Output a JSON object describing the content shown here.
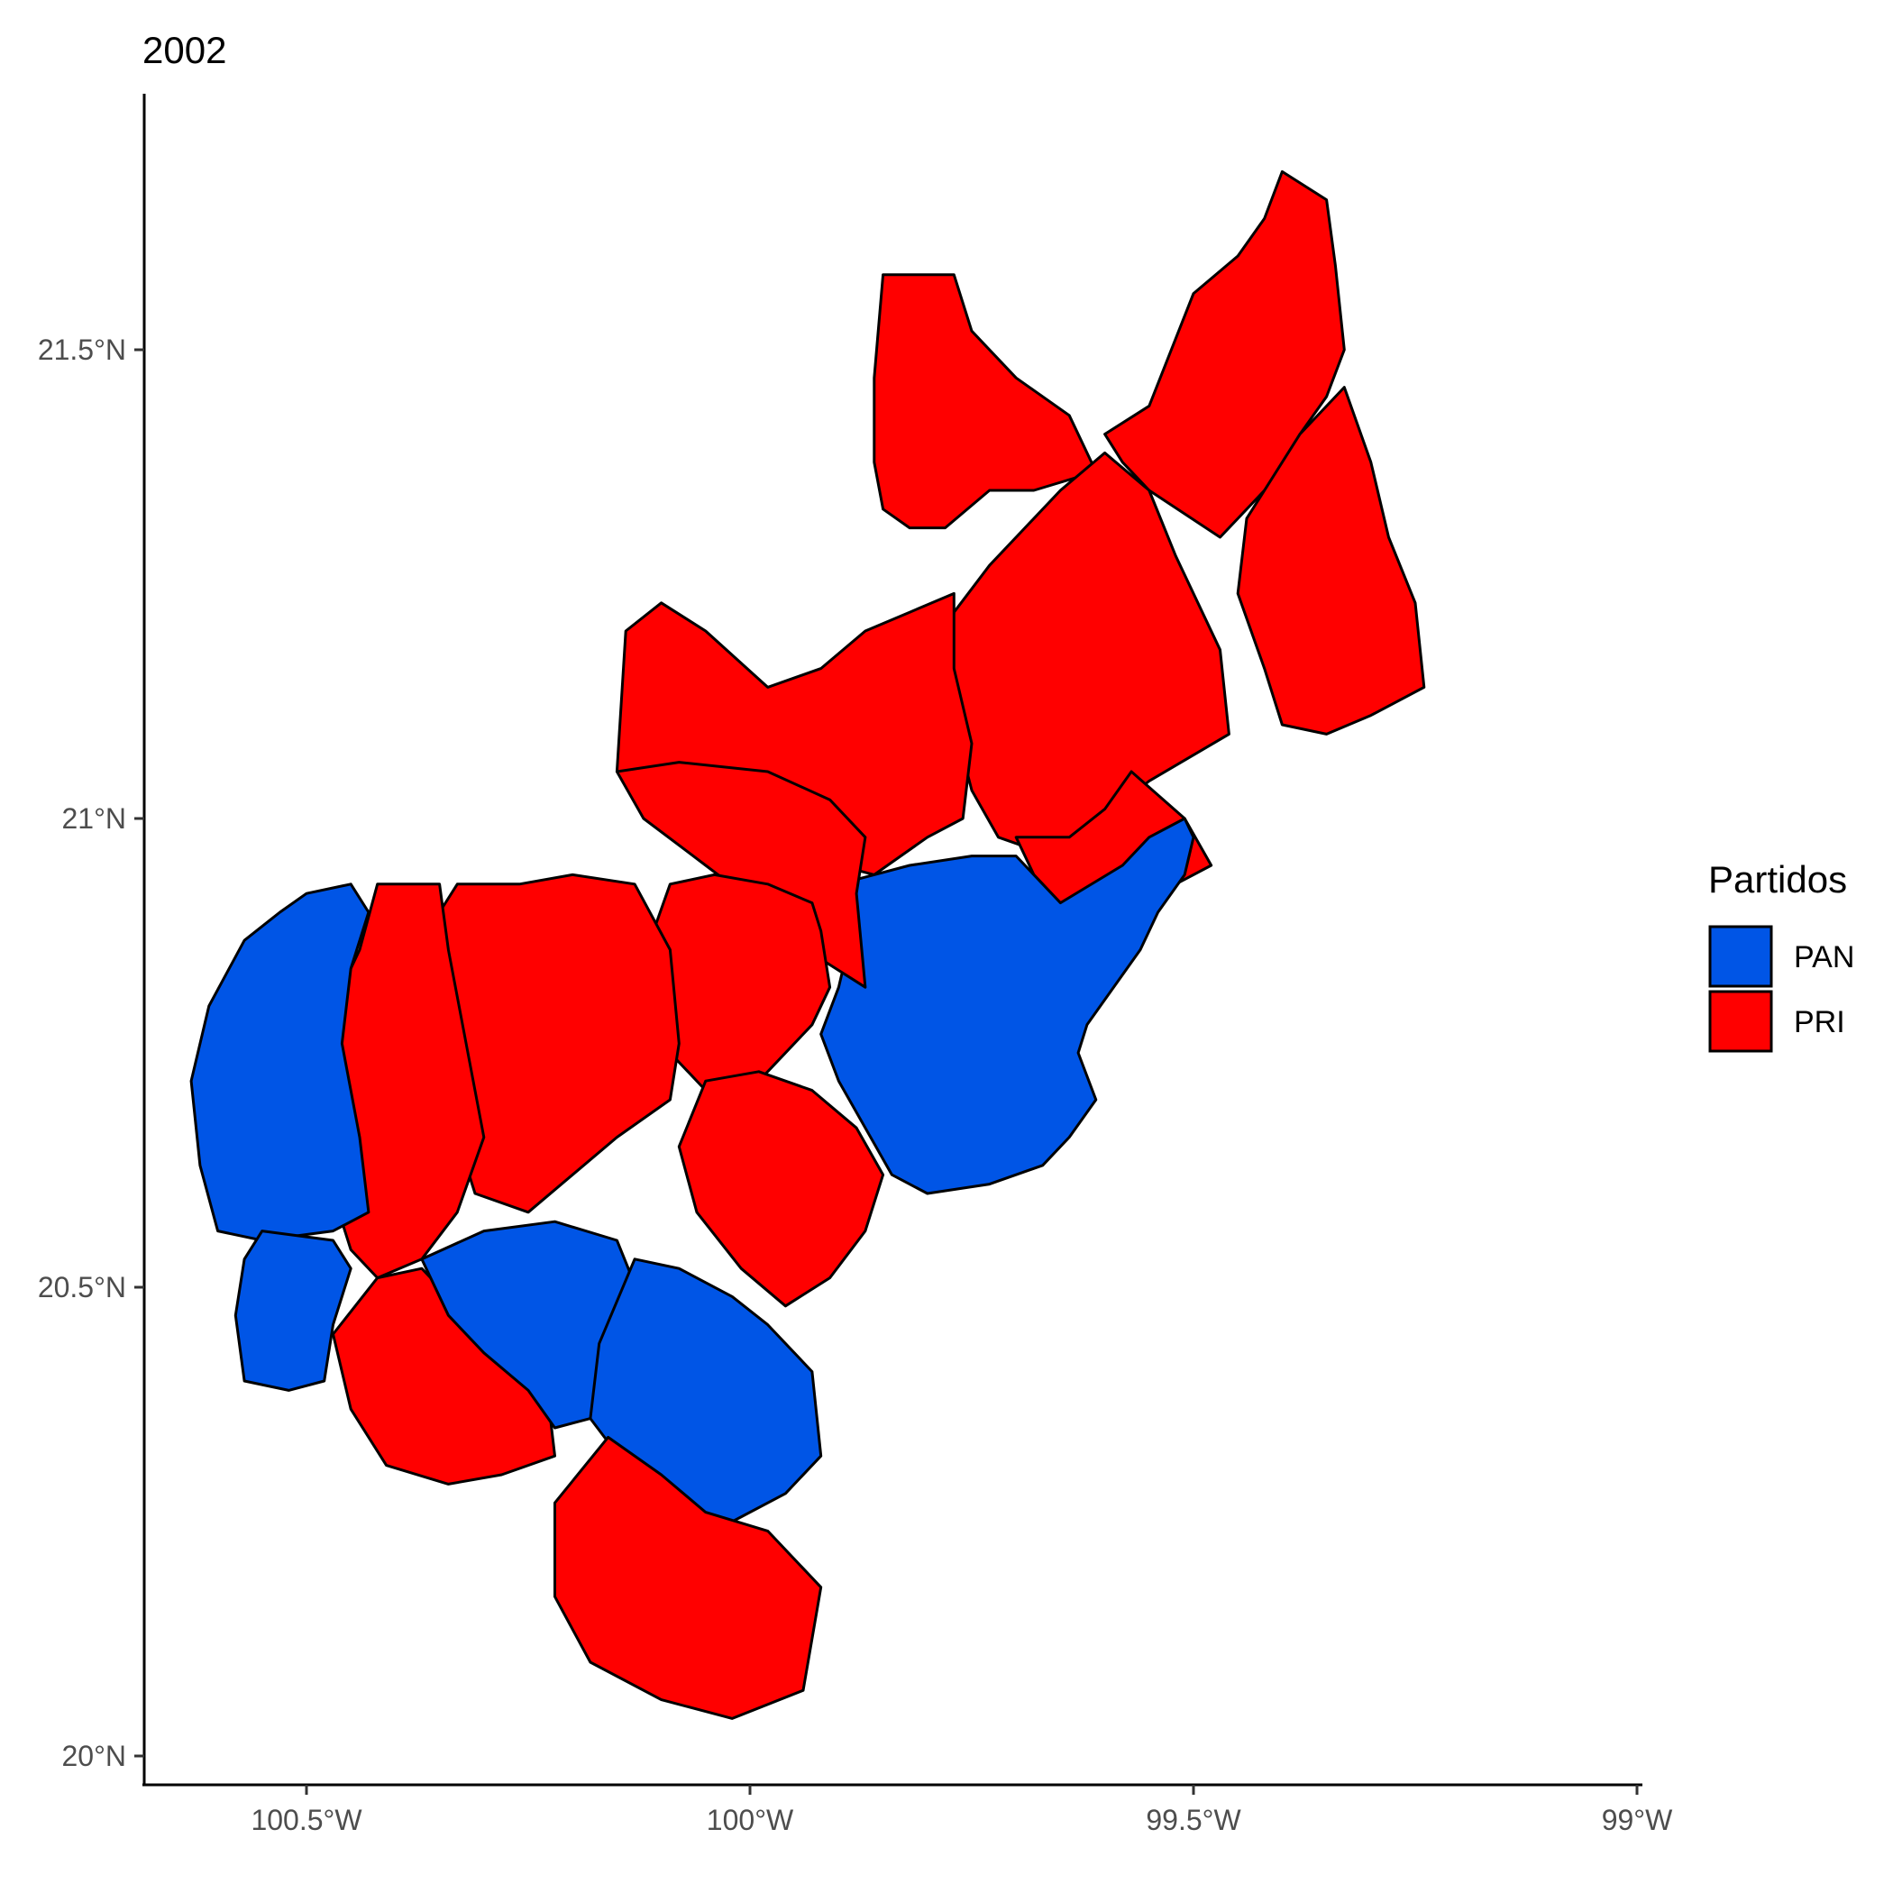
{
  "chart_data": {
    "type": "choropleth",
    "title": "2002",
    "x_axis": {
      "ticks": [
        {
          "value": -100.5,
          "label": "100.5°W"
        },
        {
          "value": -100.0,
          "label": "100°W"
        },
        {
          "value": -99.5,
          "label": "99.5°W"
        },
        {
          "value": -99.0,
          "label": "99°W"
        }
      ],
      "range": [
        -100.68,
        -99.0
      ]
    },
    "y_axis": {
      "ticks": [
        {
          "value": 20.0,
          "label": "20°N"
        },
        {
          "value": 20.5,
          "label": "20.5°N"
        },
        {
          "value": 21.0,
          "label": "21°N"
        },
        {
          "value": 21.5,
          "label": "21.5°N"
        }
      ],
      "range": [
        19.95,
        21.76
      ]
    },
    "legend": {
      "title": "Partidos",
      "placement": "right",
      "entries": [
        {
          "label": "PAN",
          "color": "#0055e6"
        },
        {
          "label": "PRI",
          "color": "#ff0000"
        }
      ]
    },
    "regions": [
      {
        "party": "PRI",
        "coords": [
          [
            -99.85,
            21.58
          ],
          [
            -99.77,
            21.58
          ],
          [
            -99.75,
            21.52
          ],
          [
            -99.7,
            21.47
          ],
          [
            -99.64,
            21.43
          ],
          [
            -99.61,
            21.37
          ],
          [
            -99.68,
            21.35
          ],
          [
            -99.73,
            21.35
          ],
          [
            -99.78,
            21.31
          ],
          [
            -99.82,
            21.31
          ],
          [
            -99.85,
            21.33
          ],
          [
            -99.86,
            21.38
          ],
          [
            -99.86,
            21.47
          ]
        ]
      },
      {
        "party": "PRI",
        "coords": [
          [
            -99.6,
            21.41
          ],
          [
            -99.55,
            21.44
          ],
          [
            -99.5,
            21.56
          ],
          [
            -99.45,
            21.6
          ],
          [
            -99.42,
            21.64
          ],
          [
            -99.4,
            21.69
          ],
          [
            -99.35,
            21.66
          ],
          [
            -99.34,
            21.59
          ],
          [
            -99.33,
            21.5
          ],
          [
            -99.35,
            21.45
          ],
          [
            -99.38,
            21.41
          ],
          [
            -99.41,
            21.36
          ],
          [
            -99.47,
            21.3
          ],
          [
            -99.55,
            21.35
          ],
          [
            -99.58,
            21.38
          ]
        ]
      },
      {
        "party": "PRI",
        "coords": [
          [
            -99.38,
            21.41
          ],
          [
            -99.33,
            21.46
          ],
          [
            -99.3,
            21.38
          ],
          [
            -99.28,
            21.3
          ],
          [
            -99.25,
            21.23
          ],
          [
            -99.24,
            21.14
          ],
          [
            -99.3,
            21.11
          ],
          [
            -99.35,
            21.09
          ],
          [
            -99.4,
            21.1
          ],
          [
            -99.42,
            21.16
          ],
          [
            -99.45,
            21.24
          ],
          [
            -99.44,
            21.32
          ]
        ]
      },
      {
        "party": "PRI",
        "coords": [
          [
            -99.65,
            21.35
          ],
          [
            -99.6,
            21.39
          ],
          [
            -99.55,
            21.35
          ],
          [
            -99.52,
            21.28
          ],
          [
            -99.47,
            21.18
          ],
          [
            -99.46,
            21.09
          ],
          [
            -99.55,
            21.04
          ],
          [
            -99.6,
            21.0
          ],
          [
            -99.66,
            20.96
          ],
          [
            -99.72,
            20.98
          ],
          [
            -99.75,
            21.03
          ],
          [
            -99.78,
            21.14
          ],
          [
            -99.77,
            21.22
          ],
          [
            -99.73,
            21.27
          ],
          [
            -99.69,
            21.31
          ]
        ]
      },
      {
        "party": "PRI",
        "coords": [
          [
            -99.57,
            21.05
          ],
          [
            -99.51,
            21.0
          ],
          [
            -99.48,
            20.95
          ],
          [
            -99.52,
            20.93
          ],
          [
            -99.58,
            20.91
          ],
          [
            -99.64,
            20.9
          ],
          [
            -99.68,
            20.94
          ],
          [
            -99.7,
            20.98
          ],
          [
            -99.64,
            20.98
          ],
          [
            -99.6,
            21.01
          ]
        ]
      },
      {
        "party": "PRI",
        "coords": [
          [
            -99.77,
            21.24
          ],
          [
            -99.82,
            21.22
          ],
          [
            -99.87,
            21.2
          ],
          [
            -99.92,
            21.16
          ],
          [
            -99.98,
            21.14
          ],
          [
            -100.05,
            21.2
          ],
          [
            -100.1,
            21.23
          ],
          [
            -100.14,
            21.2
          ],
          [
            -100.15,
            21.05
          ],
          [
            -100.1,
            21.04
          ],
          [
            -100.03,
            21.01
          ],
          [
            -99.94,
            20.96
          ],
          [
            -99.86,
            20.94
          ],
          [
            -99.8,
            20.98
          ],
          [
            -99.76,
            21.0
          ],
          [
            -99.75,
            21.08
          ],
          [
            -99.77,
            21.16
          ]
        ]
      },
      {
        "party": "PAN",
        "coords": [
          [
            -99.51,
            21.0
          ],
          [
            -99.55,
            20.98
          ],
          [
            -99.58,
            20.95
          ],
          [
            -99.65,
            20.91
          ],
          [
            -99.7,
            20.96
          ],
          [
            -99.75,
            20.96
          ],
          [
            -99.82,
            20.95
          ],
          [
            -99.86,
            20.94
          ],
          [
            -99.94,
            20.92
          ],
          [
            -99.89,
            20.86
          ],
          [
            -99.9,
            20.82
          ],
          [
            -99.92,
            20.77
          ],
          [
            -99.9,
            20.72
          ],
          [
            -99.87,
            20.67
          ],
          [
            -99.84,
            20.62
          ],
          [
            -99.8,
            20.6
          ],
          [
            -99.73,
            20.61
          ],
          [
            -99.67,
            20.63
          ],
          [
            -99.64,
            20.66
          ],
          [
            -99.61,
            20.7
          ],
          [
            -99.63,
            20.75
          ],
          [
            -99.62,
            20.78
          ],
          [
            -99.59,
            20.82
          ],
          [
            -99.56,
            20.86
          ],
          [
            -99.54,
            20.9
          ],
          [
            -99.51,
            20.94
          ],
          [
            -99.5,
            20.98
          ]
        ]
      },
      {
        "party": "PRI",
        "coords": [
          [
            -100.15,
            21.05
          ],
          [
            -100.12,
            21.0
          ],
          [
            -100.05,
            20.95
          ],
          [
            -99.98,
            20.9
          ],
          [
            -99.92,
            20.85
          ],
          [
            -99.87,
            20.82
          ],
          [
            -99.88,
            20.92
          ],
          [
            -99.87,
            20.98
          ],
          [
            -99.91,
            21.02
          ],
          [
            -99.98,
            21.05
          ],
          [
            -100.08,
            21.06
          ]
        ]
      },
      {
        "party": "PRI",
        "coords": [
          [
            -100.09,
            20.93
          ],
          [
            -100.04,
            20.94
          ],
          [
            -99.98,
            20.93
          ],
          [
            -99.93,
            20.91
          ],
          [
            -99.92,
            20.88
          ],
          [
            -99.91,
            20.82
          ],
          [
            -99.93,
            20.78
          ],
          [
            -99.99,
            20.72
          ],
          [
            -100.05,
            20.71
          ],
          [
            -100.1,
            20.76
          ],
          [
            -100.12,
            20.85
          ]
        ]
      },
      {
        "party": "PRI",
        "coords": [
          [
            -100.33,
            20.93
          ],
          [
            -100.26,
            20.93
          ],
          [
            -100.2,
            20.94
          ],
          [
            -100.13,
            20.93
          ],
          [
            -100.09,
            20.86
          ],
          [
            -100.08,
            20.76
          ],
          [
            -100.09,
            20.7
          ],
          [
            -100.15,
            20.66
          ],
          [
            -100.2,
            20.62
          ],
          [
            -100.25,
            20.58
          ],
          [
            -100.31,
            20.6
          ],
          [
            -100.33,
            20.66
          ],
          [
            -100.34,
            20.75
          ],
          [
            -100.35,
            20.85
          ],
          [
            -100.35,
            20.9
          ]
        ]
      },
      {
        "party": "PRI",
        "coords": [
          [
            -100.42,
            20.93
          ],
          [
            -100.35,
            20.93
          ],
          [
            -100.34,
            20.86
          ],
          [
            -100.32,
            20.76
          ],
          [
            -100.3,
            20.66
          ],
          [
            -100.33,
            20.58
          ],
          [
            -100.37,
            20.53
          ],
          [
            -100.42,
            20.51
          ],
          [
            -100.45,
            20.54
          ],
          [
            -100.47,
            20.6
          ],
          [
            -100.48,
            20.7
          ],
          [
            -100.48,
            20.78
          ],
          [
            -100.44,
            20.86
          ]
        ]
      },
      {
        "party": "PAN",
        "coords": [
          [
            -100.5,
            20.92
          ],
          [
            -100.45,
            20.93
          ],
          [
            -100.43,
            20.9
          ],
          [
            -100.45,
            20.84
          ],
          [
            -100.46,
            20.76
          ],
          [
            -100.44,
            20.66
          ],
          [
            -100.43,
            20.58
          ],
          [
            -100.47,
            20.56
          ],
          [
            -100.55,
            20.55
          ],
          [
            -100.6,
            20.56
          ],
          [
            -100.62,
            20.63
          ],
          [
            -100.63,
            20.72
          ],
          [
            -100.61,
            20.8
          ],
          [
            -100.57,
            20.87
          ],
          [
            -100.53,
            20.9
          ]
        ]
      },
      {
        "party": "PAN",
        "coords": [
          [
            -100.55,
            20.56
          ],
          [
            -100.47,
            20.55
          ],
          [
            -100.45,
            20.52
          ],
          [
            -100.47,
            20.46
          ],
          [
            -100.48,
            20.4
          ],
          [
            -100.52,
            20.39
          ],
          [
            -100.57,
            20.4
          ],
          [
            -100.58,
            20.47
          ],
          [
            -100.57,
            20.53
          ]
        ]
      },
      {
        "party": "PRI",
        "coords": [
          [
            -100.42,
            20.51
          ],
          [
            -100.37,
            20.52
          ],
          [
            -100.33,
            20.48
          ],
          [
            -100.27,
            20.45
          ],
          [
            -100.23,
            20.4
          ],
          [
            -100.22,
            20.32
          ],
          [
            -100.28,
            20.3
          ],
          [
            -100.34,
            20.29
          ],
          [
            -100.41,
            20.31
          ],
          [
            -100.45,
            20.37
          ],
          [
            -100.47,
            20.45
          ]
        ]
      },
      {
        "party": "PAN",
        "coords": [
          [
            -100.37,
            20.53
          ],
          [
            -100.3,
            20.56
          ],
          [
            -100.22,
            20.57
          ],
          [
            -100.15,
            20.55
          ],
          [
            -100.12,
            20.48
          ],
          [
            -100.14,
            20.4
          ],
          [
            -100.18,
            20.36
          ],
          [
            -100.22,
            20.35
          ],
          [
            -100.25,
            20.39
          ],
          [
            -100.3,
            20.43
          ],
          [
            -100.34,
            20.47
          ]
        ]
      },
      {
        "party": "PAN",
        "coords": [
          [
            -100.13,
            20.53
          ],
          [
            -100.08,
            20.52
          ],
          [
            -100.02,
            20.49
          ],
          [
            -99.98,
            20.46
          ],
          [
            -99.93,
            20.41
          ],
          [
            -99.92,
            20.32
          ],
          [
            -99.96,
            20.28
          ],
          [
            -100.02,
            20.25
          ],
          [
            -100.06,
            20.24
          ],
          [
            -100.1,
            20.27
          ],
          [
            -100.14,
            20.31
          ],
          [
            -100.18,
            20.36
          ],
          [
            -100.17,
            20.44
          ]
        ]
      },
      {
        "party": "PRI",
        "coords": [
          [
            -100.16,
            20.34
          ],
          [
            -100.1,
            20.3
          ],
          [
            -100.05,
            20.26
          ],
          [
            -99.98,
            20.24
          ],
          [
            -99.92,
            20.18
          ],
          [
            -99.94,
            20.07
          ],
          [
            -100.02,
            20.04
          ],
          [
            -100.1,
            20.06
          ],
          [
            -100.18,
            20.1
          ],
          [
            -100.22,
            20.17
          ],
          [
            -100.22,
            20.27
          ]
        ]
      },
      {
        "party": "PRI",
        "coords": [
          [
            -100.05,
            20.72
          ],
          [
            -99.99,
            20.73
          ],
          [
            -99.93,
            20.71
          ],
          [
            -99.88,
            20.67
          ],
          [
            -99.85,
            20.62
          ],
          [
            -99.87,
            20.56
          ],
          [
            -99.91,
            20.51
          ],
          [
            -99.96,
            20.48
          ],
          [
            -100.01,
            20.52
          ],
          [
            -100.06,
            20.58
          ],
          [
            -100.08,
            20.65
          ]
        ]
      }
    ]
  }
}
